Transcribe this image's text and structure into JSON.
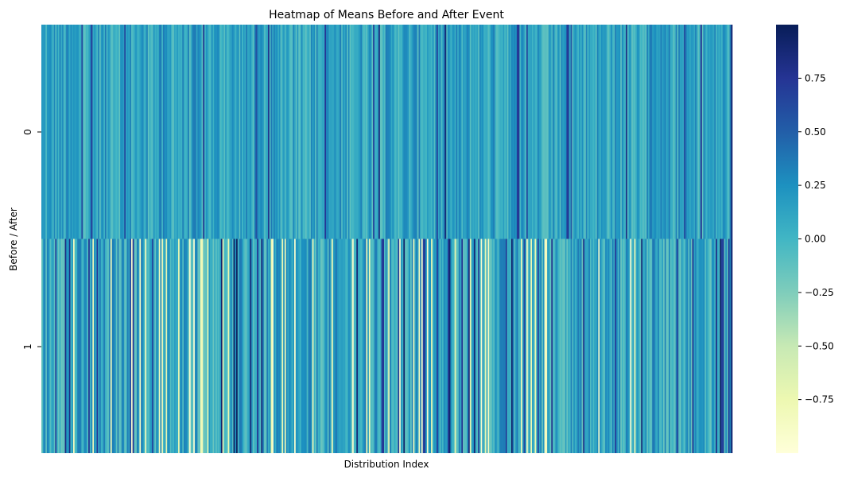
{
  "chart_data": {
    "type": "heatmap",
    "title": "Heatmap of Means Before and After Event",
    "xlabel": "Distribution Index",
    "ylabel": "Before / After",
    "rows": [
      "0",
      "1"
    ],
    "x_tick_labels": [],
    "n_columns": 500,
    "colormap": "YlGnBu",
    "colorbar": {
      "vmin": -1.0,
      "vmax": 1.0,
      "ticks": [
        0.75,
        0.5,
        0.25,
        0.0,
        -0.25,
        -0.5,
        -0.75
      ],
      "tick_labels": [
        "0.75",
        "0.50",
        "0.25",
        "0.00",
        "−0.25",
        "−0.50",
        "−0.75"
      ]
    },
    "series": [
      {
        "row": "0",
        "typical_range": [
          -0.2,
          0.6
        ],
        "mean": 0.12
      },
      {
        "row": "1",
        "typical_range": [
          -1.0,
          1.0
        ],
        "mean": 0.1
      }
    ],
    "grid": false
  }
}
